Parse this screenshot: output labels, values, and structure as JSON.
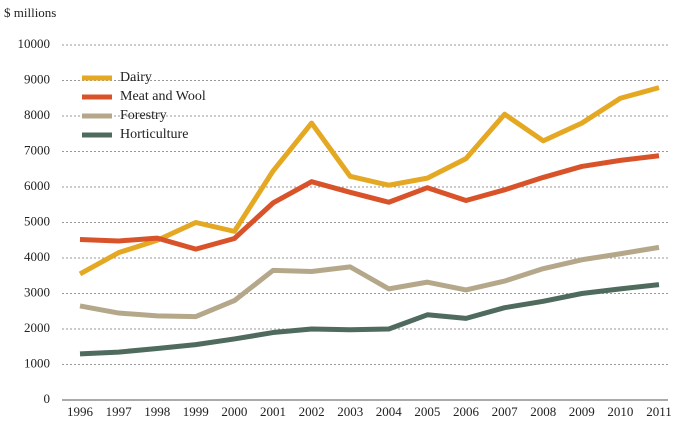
{
  "chart_data": {
    "type": "line",
    "y_axis_label": "$ millions",
    "categories": [
      "1996",
      "1997",
      "1998",
      "1999",
      "2000",
      "2001",
      "2002",
      "2003",
      "2004",
      "2005",
      "2006",
      "2007",
      "2008",
      "2009",
      "2010",
      "2011"
    ],
    "series": [
      {
        "name": "Dairy",
        "color": "#e5a823",
        "values": [
          3550,
          4150,
          4500,
          5000,
          4750,
          6450,
          7800,
          6300,
          6050,
          6250,
          6800,
          8050,
          7300,
          7800,
          8500,
          8800
        ]
      },
      {
        "name": "Meat and Wool",
        "color": "#d9532a",
        "values": [
          4520,
          4480,
          4560,
          4250,
          4550,
          5550,
          6150,
          5850,
          5570,
          5980,
          5620,
          5920,
          6270,
          6580,
          6750,
          6880
        ]
      },
      {
        "name": "Forestry",
        "color": "#b5a88a",
        "values": [
          2650,
          2450,
          2370,
          2350,
          2800,
          3650,
          3620,
          3750,
          3130,
          3320,
          3100,
          3350,
          3700,
          3950,
          4120,
          4300
        ]
      },
      {
        "name": "Horticulture",
        "color": "#4f6b5e",
        "values": [
          1300,
          1350,
          1450,
          1560,
          1720,
          1900,
          2000,
          1980,
          2000,
          2400,
          2300,
          2600,
          2780,
          3000,
          3130,
          3250
        ]
      }
    ],
    "ylim": [
      0,
      10000
    ],
    "yticks": [
      0,
      1000,
      2000,
      3000,
      4000,
      5000,
      6000,
      7000,
      8000,
      9000,
      10000
    ],
    "grid": true,
    "legend": "upper left"
  }
}
